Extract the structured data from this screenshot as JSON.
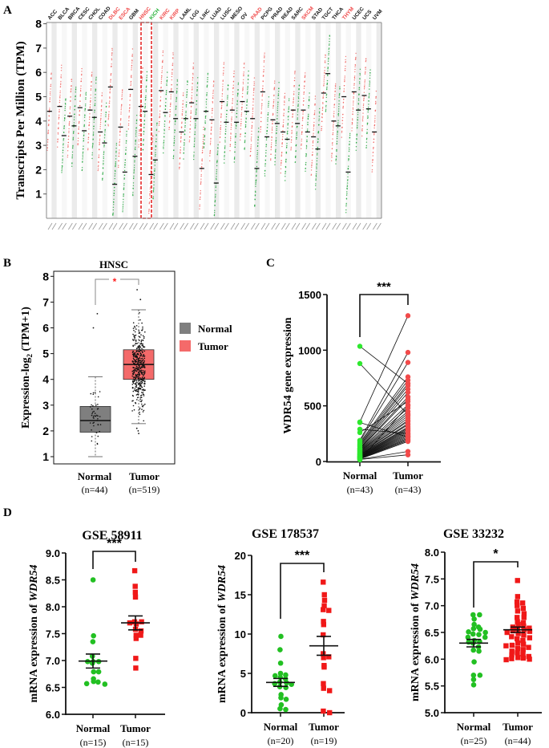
{
  "panel_labels": {
    "a": "A",
    "b": "B",
    "c": "C",
    "d": "D"
  },
  "chart_data": [
    {
      "id": "A",
      "type": "scatter",
      "title": "",
      "ylabel": "Transcripts Per Million (TPM)",
      "ylim": [
        0,
        8
      ],
      "yticks": [
        1,
        2,
        3,
        4,
        5,
        6,
        7,
        8
      ],
      "highlight": "HNSC",
      "colors": {
        "tumor": "#f0625f",
        "normal": "#1fa53a",
        "up": "#f04848",
        "down": "#22b035",
        "neutral": "#111111",
        "band": "#e9e9e9"
      },
      "categories": [
        {
          "name": "ACC",
          "status": "neutral",
          "tumor": 4.4,
          "normal": null
        },
        {
          "name": "BLCA",
          "status": "neutral",
          "tumor": 4.6,
          "normal": 3.4
        },
        {
          "name": "BRCA",
          "status": "neutral",
          "tumor": 4.2,
          "normal": 3.8
        },
        {
          "name": "CESC",
          "status": "neutral",
          "tumor": 4.55,
          "normal": 3.6
        },
        {
          "name": "CHOL",
          "status": "neutral",
          "tumor": 4.45,
          "normal": 4.15
        },
        {
          "name": "COAD",
          "status": "neutral",
          "tumor": 3.55,
          "normal": 3.1
        },
        {
          "name": "DLBC",
          "status": "up",
          "tumor": 5.4,
          "normal": 1.4
        },
        {
          "name": "ESCA",
          "status": "up",
          "tumor": 3.75,
          "normal": 1.9
        },
        {
          "name": "GBM",
          "status": "neutral",
          "tumor": 5.3,
          "normal": 2.55
        },
        {
          "name": "HNSC",
          "status": "up",
          "tumor": 4.6,
          "normal": 4.4
        },
        {
          "name": "KICH",
          "status": "down",
          "tumor": 1.8,
          "normal": 2.4
        },
        {
          "name": "KIRC",
          "status": "up",
          "tumor": 5.25,
          "normal": 4.35
        },
        {
          "name": "KIRP",
          "status": "up",
          "tumor": 5.2,
          "normal": 4.1
        },
        {
          "name": "LAML",
          "status": "neutral",
          "tumor": 3.55,
          "normal": 4.1
        },
        {
          "name": "LGG",
          "status": "neutral",
          "tumor": 4.75,
          "normal": 4.1
        },
        {
          "name": "LIHC",
          "status": "neutral",
          "tumor": 2.05,
          "normal": 4.4
        },
        {
          "name": "LUAD",
          "status": "neutral",
          "tumor": 4.05,
          "normal": 1.45
        },
        {
          "name": "LUSC",
          "status": "neutral",
          "tumor": 4.8,
          "normal": 3.95
        },
        {
          "name": "MESO",
          "status": "neutral",
          "tumor": 4.45,
          "normal": 3.95
        },
        {
          "name": "OV",
          "status": "neutral",
          "tumor": 4.8,
          "normal": 4.4
        },
        {
          "name": "PAAD",
          "status": "up",
          "tumor": 4.1,
          "normal": 2.05
        },
        {
          "name": "PCPG",
          "status": "neutral",
          "tumor": 5.2,
          "normal": 3.35
        },
        {
          "name": "PRAD",
          "status": "neutral",
          "tumor": 4.05,
          "normal": 3.9
        },
        {
          "name": "READ",
          "status": "neutral",
          "tumor": 3.55,
          "normal": 3.25
        },
        {
          "name": "SARC",
          "status": "neutral",
          "tumor": 4.45,
          "normal": 3.9
        },
        {
          "name": "SKCM",
          "status": "up",
          "tumor": 4.45,
          "normal": 3.55
        },
        {
          "name": "STAD",
          "status": "neutral",
          "tumor": 3.35,
          "normal": 2.85
        },
        {
          "name": "TGCT",
          "status": "neutral",
          "tumor": 5.15,
          "normal": 5.95
        },
        {
          "name": "THCA",
          "status": "neutral",
          "tumor": 4.0,
          "normal": 3.8
        },
        {
          "name": "THYM",
          "status": "up",
          "tumor": 5.0,
          "normal": 1.9
        },
        {
          "name": "UCEC",
          "status": "neutral",
          "tumor": 5.2,
          "normal": 4.45
        },
        {
          "name": "UCS",
          "status": "neutral",
          "tumor": 5.05,
          "normal": 4.5
        },
        {
          "name": "UVM",
          "status": "neutral",
          "tumor": 3.55,
          "normal": null
        }
      ]
    },
    {
      "id": "B",
      "type": "box",
      "title": "HNSC",
      "ylabel": "Expression-log2 (TPM+1)",
      "ylabel_main": "Expression-log",
      "ylabel_sub": "2",
      "ylabel_tail": " (TPM+1)",
      "ylim": [
        1,
        8
      ],
      "yticks": [
        1,
        2,
        3,
        4,
        5,
        6,
        7,
        8
      ],
      "significance": "*",
      "groups": [
        {
          "name": "Normal",
          "n_label": "(n=44)",
          "color": "#7f7f7f",
          "q1": 1.95,
          "median": 2.4,
          "q3": 2.95,
          "whisker_low": 1.0,
          "whisker_high": 4.1,
          "outliers": [
            6.0,
            6.55
          ]
        },
        {
          "name": "Tumor",
          "n_label": "(n=519)",
          "color": "#f46a6a",
          "q1": 4.0,
          "median": 4.58,
          "q3": 5.15,
          "whisker_low": 2.28,
          "whisker_high": 6.7,
          "outliers": [
            7.1,
            7.48,
            1.9,
            2.0,
            2.1
          ]
        }
      ],
      "legend": [
        {
          "label": "Normal",
          "color": "#7f7f7f"
        },
        {
          "label": "Tumor",
          "color": "#f46a6a"
        }
      ]
    },
    {
      "id": "C",
      "type": "paired",
      "title": "",
      "ylabel": "WDR54 gene expression",
      "ylim": [
        0,
        1500
      ],
      "yticks": [
        0,
        500,
        1000,
        1500
      ],
      "significance": "***",
      "groups": [
        {
          "name": "Normal",
          "n_label": "(n=43)",
          "color": "#2ee82e"
        },
        {
          "name": "Tumor",
          "n_label": "(n=43)",
          "color": "#f24a4a"
        }
      ],
      "pairs": [
        [
          1035,
          700
        ],
        [
          880,
          420
        ],
        [
          355,
          1310
        ],
        [
          350,
          220
        ],
        [
          290,
          250
        ],
        [
          260,
          540
        ],
        [
          190,
          980
        ],
        [
          180,
          890
        ],
        [
          170,
          760
        ],
        [
          160,
          730
        ],
        [
          150,
          700
        ],
        [
          140,
          680
        ],
        [
          130,
          650
        ],
        [
          120,
          620
        ],
        [
          115,
          580
        ],
        [
          110,
          560
        ],
        [
          105,
          510
        ],
        [
          100,
          480
        ],
        [
          95,
          450
        ],
        [
          90,
          430
        ],
        [
          85,
          410
        ],
        [
          80,
          390
        ],
        [
          75,
          370
        ],
        [
          70,
          360
        ],
        [
          65,
          340
        ],
        [
          60,
          330
        ],
        [
          58,
          310
        ],
        [
          55,
          300
        ],
        [
          50,
          290
        ],
        [
          48,
          280
        ],
        [
          45,
          270
        ],
        [
          42,
          260
        ],
        [
          40,
          250
        ],
        [
          38,
          240
        ],
        [
          35,
          230
        ],
        [
          33,
          220
        ],
        [
          30,
          210
        ],
        [
          28,
          200
        ],
        [
          25,
          190
        ],
        [
          22,
          180
        ],
        [
          20,
          90
        ],
        [
          18,
          60
        ],
        [
          15,
          500
        ]
      ]
    },
    {
      "id": "D1",
      "type": "scatter",
      "title": "GSE 58911",
      "ylabel": "mRNA expression of WDR54",
      "ylabel_main": "mRNA expression of ",
      "ylabel_italic": "WDR54",
      "ylim": [
        6.0,
        9.0
      ],
      "yticks": [
        "6.0",
        "6.5",
        "7.0",
        "7.5",
        "8.0",
        "8.5",
        "9.0"
      ],
      "significance": "***",
      "groups": [
        {
          "name": "Normal",
          "n_label": "(n=15)",
          "color": "#22c022",
          "shape": "circle",
          "mean": 6.99,
          "sem": 0.13,
          "values": [
            8.5,
            7.46,
            7.35,
            7.08,
            6.98,
            6.98,
            6.98,
            6.95,
            6.79,
            6.79,
            6.66,
            6.61,
            6.6,
            6.57,
            6.56
          ]
        },
        {
          "name": "Tumor",
          "n_label": "(n=15)",
          "color": "#f01818",
          "shape": "square",
          "mean": 7.7,
          "sem": 0.13,
          "values": [
            8.67,
            8.38,
            8.27,
            8.18,
            7.72,
            7.72,
            7.68,
            7.58,
            7.55,
            7.47,
            7.47,
            7.41,
            7.04,
            6.86,
            7.7
          ]
        }
      ]
    },
    {
      "id": "D2",
      "type": "scatter",
      "title": "GSE 178537",
      "ylabel": "mRNA expression of WDR54",
      "ylabel_main": "mRNA expression of ",
      "ylabel_italic": "WDR54",
      "ylim": [
        0,
        20
      ],
      "yticks": [
        "0",
        "5",
        "10",
        "15",
        "20"
      ],
      "significance": "***",
      "groups": [
        {
          "name": "Normal",
          "n_label": "(n=20)",
          "color": "#22c022",
          "shape": "circle",
          "mean": 3.85,
          "sem": 0.5,
          "values": [
            9.7,
            8.0,
            6.3,
            5.0,
            4.8,
            4.7,
            4.5,
            4.3,
            3.9,
            3.8,
            3.7,
            3.6,
            3.3,
            3.2,
            2.3,
            1.9,
            1.7,
            1.0,
            0.5,
            0.4
          ]
        },
        {
          "name": "Tumor",
          "n_label": "(n=19)",
          "color": "#f01818",
          "shape": "square",
          "mean": 8.5,
          "sem": 1.2,
          "values": [
            16.6,
            15.0,
            14.3,
            13.6,
            13.1,
            13.0,
            11.6,
            11.2,
            9.9,
            7.5,
            7.1,
            7.0,
            6.0,
            5.8,
            3.7,
            3.1,
            2.8,
            0.2,
            0.0
          ]
        }
      ]
    },
    {
      "id": "D3",
      "type": "scatter",
      "title": "GSE 33232",
      "ylabel": "mRNA expression of WDR54",
      "ylabel_main": "mRNA expression of ",
      "ylabel_italic": "WDR54",
      "ylim": [
        5.0,
        8.0
      ],
      "yticks": [
        "5.0",
        "5.5",
        "6.0",
        "6.5",
        "7.0",
        "7.5",
        "8.0"
      ],
      "significance": "*",
      "groups": [
        {
          "name": "Normal",
          "n_label": "(n=25)",
          "color": "#22c022",
          "shape": "circle",
          "mean": 6.3,
          "sem": 0.07,
          "values": [
            6.83,
            6.83,
            6.75,
            6.65,
            6.6,
            6.57,
            6.56,
            6.51,
            6.5,
            6.47,
            6.46,
            6.41,
            6.41,
            6.35,
            6.33,
            6.32,
            6.3,
            6.23,
            6.17,
            6.15,
            5.95,
            5.7,
            5.7,
            5.62,
            5.52
          ]
        },
        {
          "name": "Tumor",
          "n_label": "(n=44)",
          "color": "#f01818",
          "shape": "square",
          "mean": 6.55,
          "sem": 0.05,
          "values": [
            7.47,
            7.17,
            7.07,
            7.05,
            7.0,
            6.95,
            6.9,
            6.85,
            6.78,
            6.78,
            6.7,
            6.68,
            6.65,
            6.62,
            6.6,
            6.58,
            6.57,
            6.55,
            6.53,
            6.52,
            6.5,
            6.48,
            6.45,
            6.42,
            6.4,
            6.38,
            6.35,
            6.3,
            6.28,
            6.26,
            6.22,
            6.2,
            6.18,
            6.15,
            6.12,
            6.1,
            6.08,
            6.05,
            6.03,
            6.02,
            6.01,
            6.0,
            5.99,
            6.25
          ]
        }
      ]
    }
  ]
}
